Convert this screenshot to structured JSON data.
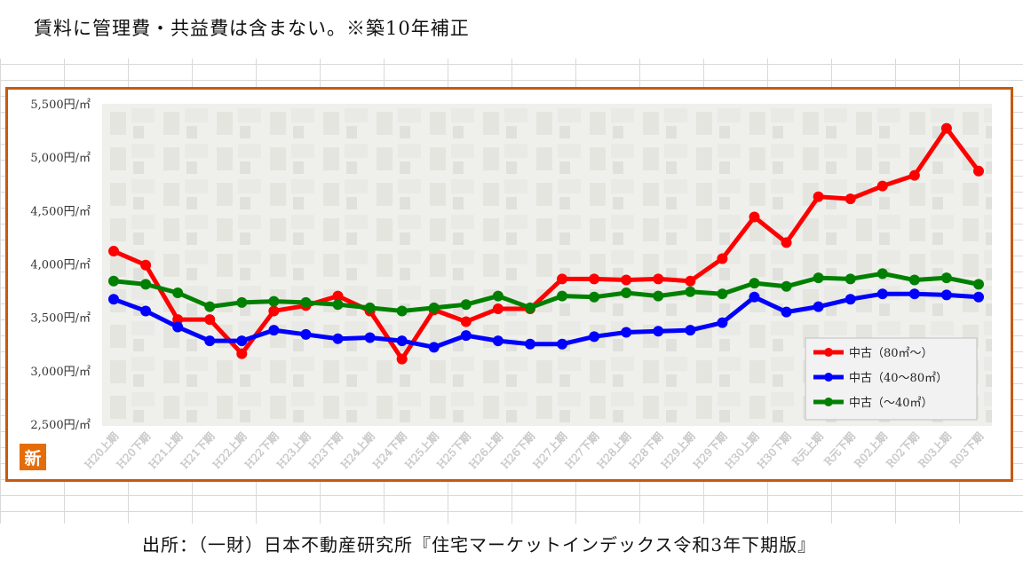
{
  "header_note": "賃料に管理費・共益費は含まない。※築10年補正",
  "source_note": "出所：（一財）日本不動産研究所『住宅マーケットインデックス令和3年下期版』",
  "badge_label": "新",
  "colors": {
    "frame": "#c65911",
    "series_80_plus": "#ff0000",
    "series_40_80": "#0000ff",
    "series_under_40": "#008000",
    "badge": "#e46c0a"
  },
  "chart_data": {
    "type": "line",
    "title": "",
    "xlabel": "",
    "ylabel": "",
    "ylim": [
      2500,
      5500
    ],
    "y_ticks": [
      2500,
      3000,
      3500,
      4000,
      4500,
      5000,
      5500
    ],
    "y_tick_labels": [
      "2,500円/㎡",
      "3,000円/㎡",
      "3,500円/㎡",
      "4,000円/㎡",
      "4,500円/㎡",
      "5,000円/㎡",
      "5,500円/㎡"
    ],
    "grid": false,
    "legend_position": "bottom-right",
    "categories": [
      "H20上期",
      "H20下期",
      "H21上期",
      "H21下期",
      "H22上期",
      "H22下期",
      "H23上期",
      "H23下期",
      "H24上期",
      "H24下期",
      "H25上期",
      "H25下期",
      "H26上期",
      "H26下期",
      "H27上期",
      "H27下期",
      "H28上期",
      "H28下期",
      "H29上期",
      "H29下期",
      "H30上期",
      "H30下期",
      "R元上期",
      "R元下期",
      "R02上期",
      "R02下期",
      "R03上期",
      "R03下期"
    ],
    "series": [
      {
        "name": "中古（80㎡～）",
        "color": "#ff0000",
        "values": [
          4120,
          3990,
          3480,
          3480,
          3160,
          3560,
          3610,
          3700,
          3560,
          3110,
          3570,
          3460,
          3580,
          3580,
          3860,
          3860,
          3850,
          3860,
          3840,
          4050,
          4440,
          4200,
          4630,
          4610,
          4730,
          4830,
          5270,
          4870
        ]
      },
      {
        "name": "中古（40～80㎡）",
        "color": "#0000ff",
        "values": [
          3670,
          3560,
          3410,
          3280,
          3280,
          3380,
          3340,
          3300,
          3310,
          3280,
          3220,
          3330,
          3280,
          3250,
          3250,
          3320,
          3360,
          3370,
          3380,
          3450,
          3690,
          3550,
          3600,
          3670,
          3720,
          3720,
          3710,
          3690
        ]
      },
      {
        "name": "中古（～40㎡）",
        "color": "#008000",
        "values": [
          3840,
          3810,
          3730,
          3600,
          3640,
          3650,
          3640,
          3620,
          3590,
          3560,
          3590,
          3620,
          3700,
          3590,
          3700,
          3690,
          3730,
          3700,
          3740,
          3720,
          3820,
          3790,
          3870,
          3860,
          3910,
          3850,
          3870,
          3810
        ]
      }
    ]
  }
}
